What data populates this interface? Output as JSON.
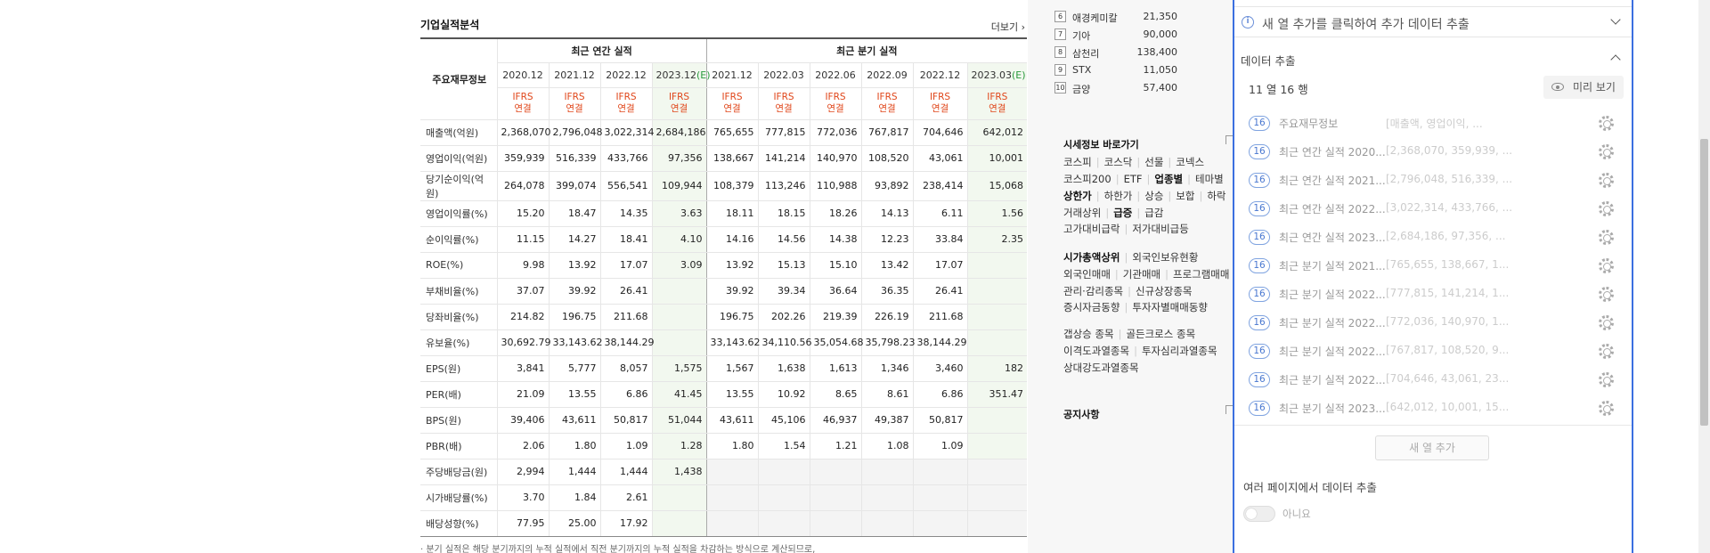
{
  "fin": {
    "title": "기업실적분석",
    "more": "더보기",
    "group_label": "주요재무정보",
    "annual_header": "최근 연간 실적",
    "quarter_header": "최근 분기 실적",
    "periods": [
      "2020.12",
      "2021.12",
      "2022.12",
      "2023.12",
      "2021.12",
      "2022.03",
      "2022.06",
      "2022.09",
      "2022.12",
      "2023.03"
    ],
    "estimate_mark": "(E)",
    "ifrs": "IFRS",
    "basis": "연결",
    "rows": [
      {
        "label": "매출액(억원)",
        "values": [
          "2,368,070",
          "2,796,048",
          "3,022,314",
          "2,684,186",
          "765,655",
          "777,815",
          "772,036",
          "767,817",
          "704,646",
          "642,012"
        ]
      },
      {
        "label": "영업이익(억원)",
        "values": [
          "359,939",
          "516,339",
          "433,766",
          "97,356",
          "138,667",
          "141,214",
          "140,970",
          "108,520",
          "43,061",
          "10,001"
        ]
      },
      {
        "label": "당기순이익(억원)",
        "values": [
          "264,078",
          "399,074",
          "556,541",
          "109,944",
          "108,379",
          "113,246",
          "110,988",
          "93,892",
          "238,414",
          "15,068"
        ]
      },
      {
        "label": "영업이익률(%)",
        "values": [
          "15.20",
          "18.47",
          "14.35",
          "3.63",
          "18.11",
          "18.15",
          "18.26",
          "14.13",
          "6.11",
          "1.56"
        ]
      },
      {
        "label": "순이익률(%)",
        "values": [
          "11.15",
          "14.27",
          "18.41",
          "4.10",
          "14.16",
          "14.56",
          "14.38",
          "12.23",
          "33.84",
          "2.35"
        ]
      },
      {
        "label": "ROE(%)",
        "values": [
          "9.98",
          "13.92",
          "17.07",
          "3.09",
          "13.92",
          "15.13",
          "15.10",
          "13.42",
          "17.07",
          ""
        ]
      },
      {
        "label": "부채비율(%)",
        "values": [
          "37.07",
          "39.92",
          "26.41",
          "",
          "39.92",
          "39.34",
          "36.64",
          "36.35",
          "26.41",
          ""
        ]
      },
      {
        "label": "당좌비율(%)",
        "values": [
          "214.82",
          "196.75",
          "211.68",
          "",
          "196.75",
          "202.26",
          "219.39",
          "226.19",
          "211.68",
          ""
        ]
      },
      {
        "label": "유보율(%)",
        "values": [
          "30,692.79",
          "33,143.62",
          "38,144.29",
          "",
          "33,143.62",
          "34,110.56",
          "35,054.68",
          "35,798.23",
          "38,144.29",
          ""
        ]
      },
      {
        "label": "EPS(원)",
        "values": [
          "3,841",
          "5,777",
          "8,057",
          "1,575",
          "1,567",
          "1,638",
          "1,613",
          "1,346",
          "3,460",
          "182"
        ]
      },
      {
        "label": "PER(배)",
        "values": [
          "21.09",
          "13.55",
          "6.86",
          "41.45",
          "13.55",
          "10.92",
          "8.65",
          "8.61",
          "6.86",
          "351.47"
        ]
      },
      {
        "label": "BPS(원)",
        "values": [
          "39,406",
          "43,611",
          "50,817",
          "51,044",
          "43,611",
          "45,106",
          "46,937",
          "49,387",
          "50,817",
          ""
        ]
      },
      {
        "label": "PBR(배)",
        "values": [
          "2.06",
          "1.80",
          "1.09",
          "1.28",
          "1.80",
          "1.54",
          "1.21",
          "1.08",
          "1.09",
          ""
        ]
      },
      {
        "label": "주당배당금(원)",
        "values": [
          "2,994",
          "1,444",
          "1,444",
          "1,438",
          "",
          "",
          "",
          "",
          "",
          ""
        ]
      },
      {
        "label": "시가배당률(%)",
        "values": [
          "3.70",
          "1.84",
          "2.61",
          "",
          "",
          "",
          "",
          "",
          "",
          ""
        ]
      },
      {
        "label": "배당성향(%)",
        "values": [
          "77.95",
          "25.00",
          "17.92",
          "",
          "",
          "",
          "",
          "",
          "",
          ""
        ]
      }
    ],
    "note": "· 분기 실적은 해당 분기까지의 누적 실적에서 직전 분기까지의 누적 실적을 차감하는 방식으로 계산되므로,"
  },
  "ranking": [
    {
      "no": "6",
      "name": "애경케미칼",
      "price": "21,350"
    },
    {
      "no": "7",
      "name": "기아",
      "price": "90,000"
    },
    {
      "no": "8",
      "name": "삼천리",
      "price": "138,400"
    },
    {
      "no": "9",
      "name": "STX",
      "price": "11,050"
    },
    {
      "no": "10",
      "name": "금양",
      "price": "57,400"
    }
  ],
  "market": {
    "title": "시세정보 바로가기",
    "lines": [
      [
        "코스피",
        "코스닥",
        "선물",
        "코넥스"
      ],
      [
        "코스피200",
        "ETF",
        "업종별",
        "테마별"
      ],
      [
        "상한가",
        "하한가",
        "상승",
        "보합",
        "하락"
      ],
      [
        "거래상위",
        "급증",
        "급감"
      ],
      [
        "고가대비급락",
        "저가대비급등"
      ],
      [
        "시가총액상위",
        "외국인보유현황"
      ],
      [
        "외국인매매",
        "기관매매",
        "프로그램매매"
      ],
      [
        "관리·감리종목",
        "신규상장종목"
      ],
      [
        "증시자금동향",
        "투자자별매매동향"
      ],
      [
        "갭상승 종목",
        "골든크로스 종목"
      ],
      [
        "이격도과열종목",
        "투자심리과열종목"
      ],
      [
        "상대강도과열종목"
      ]
    ],
    "notice_title": "공지사항"
  },
  "panel": {
    "hint": "새 열 추가를 클릭하여 추가 데이터 추출",
    "section_title": "데이터 추출",
    "size_text": "11 열  16 행",
    "preview_label": "미리 보기",
    "columns": [
      {
        "count": "16",
        "name": "주요재무정보",
        "sample": "[매출액, 영업이익, ..."
      },
      {
        "count": "16",
        "name": "최근 연간 실적 2020...",
        "sample": "[2,368,070, 359,939, ..."
      },
      {
        "count": "16",
        "name": "최근 연간 실적 2021...",
        "sample": "[2,796,048, 516,339, ..."
      },
      {
        "count": "16",
        "name": "최근 연간 실적 2022...",
        "sample": "[3,022,314, 433,766, ..."
      },
      {
        "count": "16",
        "name": "최근 연간 실적 2023...",
        "sample": "[2,684,186, 97,356, ..."
      },
      {
        "count": "16",
        "name": "최근 분기 실적 2021...",
        "sample": "[765,655, 138,667, 1..."
      },
      {
        "count": "16",
        "name": "최근 분기 실적 2022...",
        "sample": "[777,815, 141,214, 1..."
      },
      {
        "count": "16",
        "name": "최근 분기 실적 2022...",
        "sample": "[772,036, 140,970, 1..."
      },
      {
        "count": "16",
        "name": "최근 분기 실적 2022...",
        "sample": "[767,817, 108,520, 9..."
      },
      {
        "count": "16",
        "name": "최근 분기 실적 2022...",
        "sample": "[704,646, 43,061, 23..."
      },
      {
        "count": "16",
        "name": "최근 분기 실적 2023...",
        "sample": "[642,012, 10,001, 15..."
      }
    ],
    "add_column": "새 열 추가",
    "multi_page": "여러 페이지에서 데이터 추출",
    "toggle_label": "아니요"
  },
  "colors": {
    "accent": "#3b6fe0",
    "ifrs": "#e0461a",
    "estimate": "#2a9a3d"
  }
}
